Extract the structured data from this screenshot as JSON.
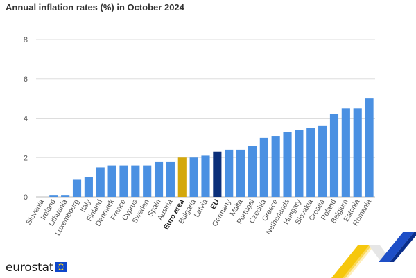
{
  "title": "Annual inflation rates (%) in October 2024",
  "brand": {
    "name": "eurostat",
    "logo_icon": "eu-flag-icon"
  },
  "colors": {
    "default_bar": "#4a90e2",
    "euro_area_bar": "#d4a80c",
    "eu_bar": "#0b2f7a",
    "grid": "#dddddd",
    "tick_text": "#555555",
    "deco_yellow": "#f6c400",
    "deco_blue": "#1e4fc7"
  },
  "chart_data": {
    "type": "bar",
    "title": "Annual inflation rates (%) in October 2024",
    "xlabel": "",
    "ylabel": "",
    "ylim": [
      0,
      8
    ],
    "yticks": [
      0,
      2,
      4,
      6,
      8
    ],
    "grid": "horizontal",
    "categories": [
      "Slovenia",
      "Ireland",
      "Lithuania",
      "Luxembourg",
      "Italy",
      "Finland",
      "Denmark",
      "France",
      "Cyprus",
      "Sweden",
      "Spain",
      "Austria",
      "Euro area",
      "Bulgaria",
      "Latvia",
      "EU",
      "Germany",
      "Malta",
      "Portugal",
      "Czechia",
      "Greece",
      "Netherlands",
      "Hungary",
      "Slovakia",
      "Croatia",
      "Poland",
      "Belgium",
      "Estonia",
      "Romania"
    ],
    "values": [
      0.0,
      0.1,
      0.1,
      0.9,
      1.0,
      1.5,
      1.6,
      1.6,
      1.6,
      1.6,
      1.8,
      1.8,
      2.0,
      2.0,
      2.1,
      2.3,
      2.4,
      2.4,
      2.6,
      3.0,
      3.1,
      3.3,
      3.4,
      3.5,
      3.6,
      4.2,
      4.5,
      4.5,
      5.0
    ],
    "highlighted": {
      "Euro area": {
        "color": "#d4a80c",
        "bold_label": true
      },
      "EU": {
        "color": "#0b2f7a",
        "bold_label": true
      }
    }
  }
}
